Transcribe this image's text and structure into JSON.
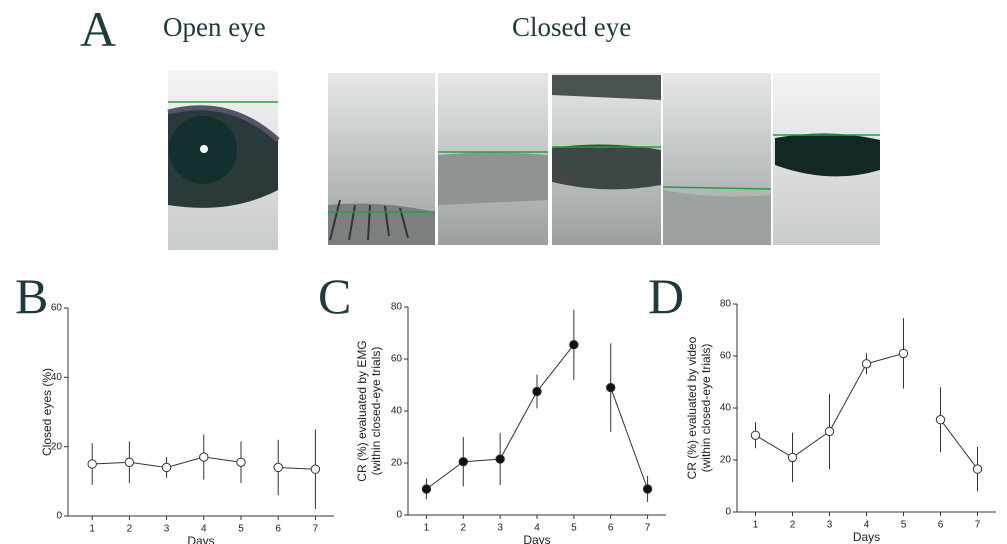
{
  "panels": {
    "a": {
      "letter": "A",
      "open_caption": "Open eye",
      "closed_caption": "Closed eye"
    },
    "b": "B",
    "c": "C",
    "d": "D"
  },
  "chart_data": [
    {
      "type": "line",
      "ylabel": [
        "Closed eyes (%)"
      ],
      "xlabel": "Days",
      "xlim": [
        0.35,
        7.5
      ],
      "xticks": [
        1,
        2,
        3,
        4,
        5,
        6,
        7
      ],
      "ylim": [
        0,
        60
      ],
      "yticks": [
        0,
        20,
        40,
        60
      ],
      "color": "#333333",
      "marker_face": "#ffffff",
      "series": [
        {
          "x": [
            1,
            2,
            3,
            4,
            5
          ],
          "values": [
            15,
            15.5,
            14,
            17,
            15.5
          ],
          "errors": [
            6,
            6,
            3,
            6.5,
            6
          ]
        },
        {
          "x": [
            6,
            7
          ],
          "values": [
            14,
            13.5
          ],
          "errors": [
            8,
            11.5
          ]
        }
      ]
    },
    {
      "type": "line",
      "ylabel": [
        "CR (%) evaluated by EMG",
        "(within closed-eye trials)"
      ],
      "xlabel": "Days",
      "xlim": [
        0.5,
        7.5
      ],
      "xticks": [
        1,
        2,
        3,
        4,
        5,
        6,
        7
      ],
      "ylim": [
        0,
        80
      ],
      "yticks": [
        0,
        20,
        40,
        60,
        80
      ],
      "color": "#333333",
      "marker_face": "#111111",
      "series": [
        {
          "x": [
            1,
            2,
            3,
            4,
            5
          ],
          "values": [
            10,
            20.5,
            21.5,
            47.5,
            65.5
          ],
          "errors": [
            4,
            9.5,
            10,
            6.5,
            13.5
          ]
        },
        {
          "x": [
            6,
            7
          ],
          "values": [
            49,
            10
          ],
          "errors": [
            17,
            5
          ]
        }
      ]
    },
    {
      "type": "line",
      "ylabel": [
        "CR (%) evaluated by video",
        "(within closed-eye trials)"
      ],
      "xlabel": "Days",
      "xlim": [
        0.5,
        7.5
      ],
      "xticks": [
        1,
        2,
        3,
        4,
        5,
        6,
        7
      ],
      "ylim": [
        0,
        80
      ],
      "yticks": [
        0,
        20,
        40,
        60,
        80
      ],
      "color": "#333333",
      "marker_face": "#ffffff",
      "series": [
        {
          "x": [
            1,
            2,
            3,
            4,
            5
          ],
          "values": [
            29.5,
            21,
            31,
            57,
            61
          ],
          "errors": [
            5,
            9.5,
            14.5,
            4,
            13.5
          ]
        },
        {
          "x": [
            6,
            7
          ],
          "values": [
            35.5,
            16.5
          ],
          "errors": [
            12.5,
            8.5
          ]
        }
      ]
    }
  ]
}
